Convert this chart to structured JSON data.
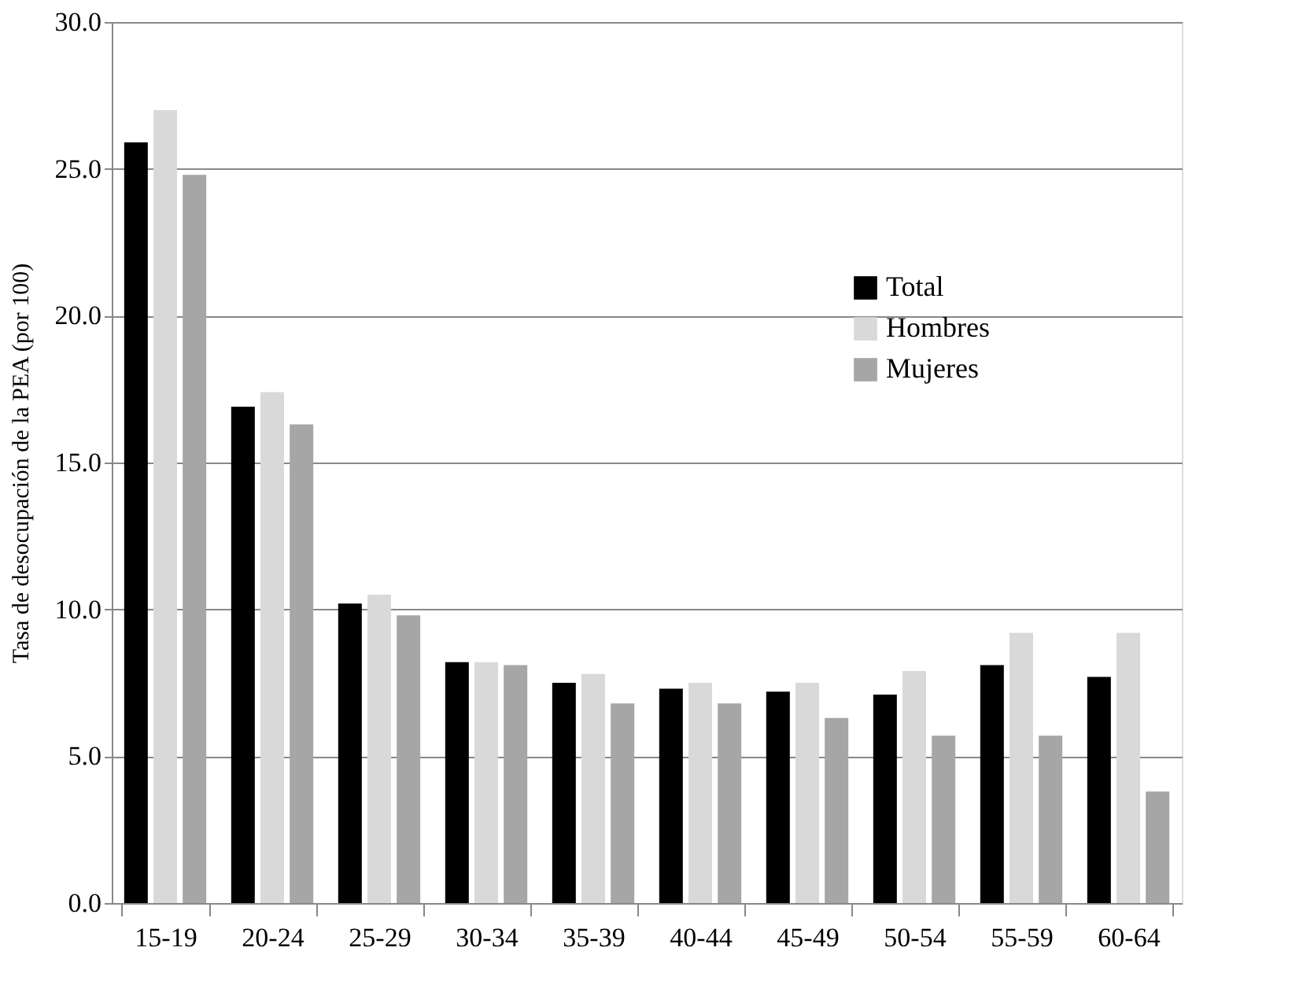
{
  "chart_data": {
    "type": "bar",
    "ylabel": "Tasa de desocupación de la PEA (por 100)",
    "categories": [
      "15-19",
      "20-24",
      "25-29",
      "30-34",
      "35-39",
      "40-44",
      "45-49",
      "50-54",
      "55-59",
      "60-64"
    ],
    "series": [
      {
        "name": "Total",
        "color": "#000000",
        "values": [
          25.9,
          16.9,
          10.2,
          8.2,
          7.5,
          7.3,
          7.2,
          7.1,
          8.1,
          7.7
        ]
      },
      {
        "name": "Hombres",
        "color": "#d9d9d9",
        "values": [
          27.0,
          17.4,
          10.5,
          8.2,
          7.8,
          7.5,
          7.5,
          7.9,
          9.2,
          9.2
        ]
      },
      {
        "name": "Mujeres",
        "color": "#a6a6a6",
        "values": [
          24.8,
          16.3,
          9.8,
          8.1,
          6.8,
          6.8,
          6.3,
          5.7,
          5.7,
          3.8
        ]
      }
    ],
    "ylim": [
      0,
      30
    ],
    "yticks": [
      {
        "value": 0,
        "label": "0.0"
      },
      {
        "value": 5,
        "label": "5.0"
      },
      {
        "value": 10,
        "label": "10.0"
      },
      {
        "value": 15,
        "label": "15.0"
      },
      {
        "value": 20,
        "label": "20.0"
      },
      {
        "value": 25,
        "label": "25.0"
      },
      {
        "value": 30,
        "label": "30.0"
      }
    ],
    "grid": "y",
    "legend": "top right"
  }
}
